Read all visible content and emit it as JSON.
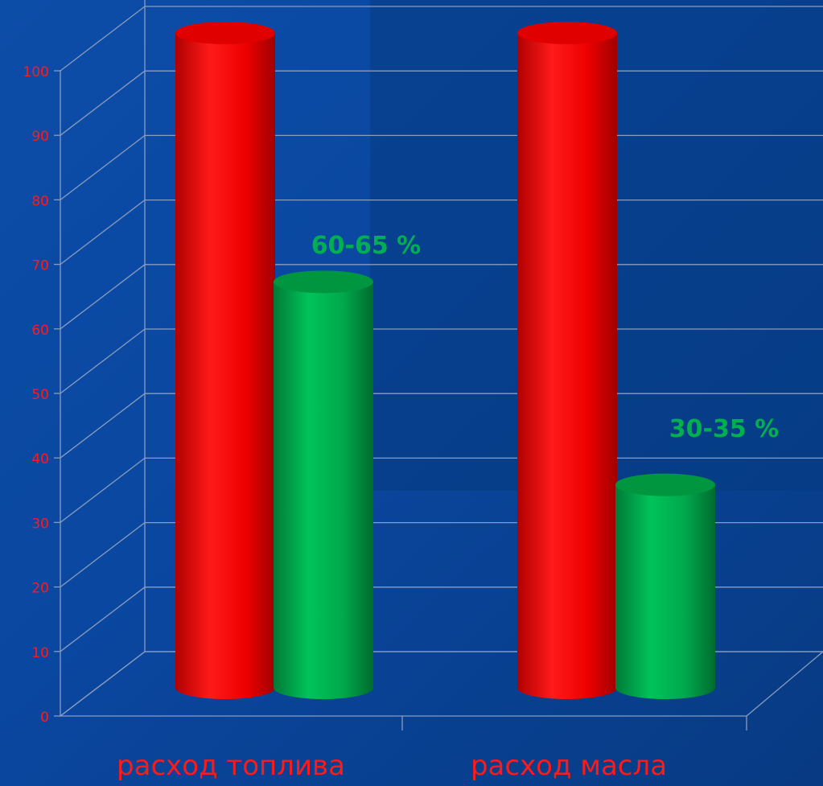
{
  "chart_data": {
    "type": "bar",
    "categories": [
      "расход топлива",
      "расход масла"
    ],
    "series": [
      {
        "values": [
          100,
          100
        ]
      },
      {
        "values": [
          62,
          31
        ]
      }
    ],
    "annotations": [
      "60-65 %",
      "30-35 %"
    ],
    "ylim": [
      0,
      100
    ],
    "yticks": [
      "0",
      "10",
      "20",
      "30",
      "40",
      "50",
      "60",
      "70",
      "80",
      "90",
      "100"
    ],
    "grid": true,
    "colors": {
      "background": "#0a3f8c",
      "series_1": "#ff1010",
      "series_2": "#00b050",
      "annotation": "#00b050",
      "axis_labels": "#ff1a1a",
      "gridlines": "#8a9dbf"
    }
  }
}
